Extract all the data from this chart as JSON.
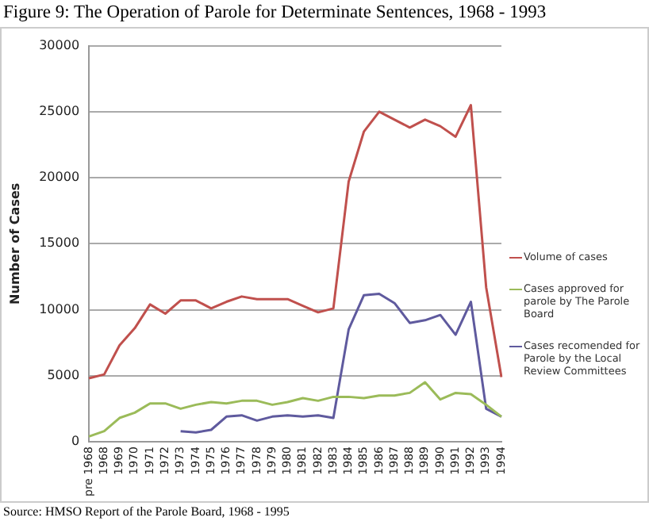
{
  "chart_data": {
    "type": "line",
    "title": "Figure 9: The Operation of Parole for Determinate Sentences, 1968 - 1993",
    "ylabel": "Number of Cases",
    "categories": [
      "pre 1968",
      "1968",
      "1969",
      "1970",
      "1971",
      "1972",
      "1973",
      "1974",
      "1975",
      "1976",
      "1977",
      "1978",
      "1979",
      "1980",
      "1981",
      "1982",
      "1983",
      "1984",
      "1985",
      "1986",
      "1987",
      "1988",
      "1989",
      "1990",
      "1991",
      "1992",
      "1993",
      "1994"
    ],
    "series": [
      {
        "name": "Volume of cases",
        "color": "#c0504d",
        "values": [
          4800,
          5100,
          7300,
          8600,
          10400,
          9700,
          10700,
          10700,
          10100,
          10600,
          11000,
          10800,
          10800,
          10800,
          10300,
          9800,
          10100,
          19700,
          23500,
          25000,
          24400,
          23800,
          24400,
          23900,
          23100,
          25500,
          11700,
          4900
        ]
      },
      {
        "name": "Cases approved for parole by The Parole Board",
        "color": "#9bbb59",
        "values": [
          400,
          800,
          1800,
          2200,
          2900,
          2900,
          2500,
          2800,
          3000,
          2900,
          3100,
          3100,
          2800,
          3000,
          3300,
          3100,
          3400,
          3400,
          3300,
          3500,
          3500,
          3700,
          4500,
          3200,
          3700,
          3600,
          2800,
          1900
        ]
      },
      {
        "name": "Cases recomended for Parole by the Local Review Committees",
        "color": "#5f5a9e",
        "values": [
          null,
          null,
          null,
          null,
          null,
          null,
          800,
          700,
          900,
          1900,
          2000,
          1600,
          1900,
          2000,
          1900,
          2000,
          1800,
          8500,
          11100,
          11200,
          10500,
          9000,
          9200,
          9600,
          8100,
          10600,
          2500,
          1900
        ]
      }
    ],
    "ylim": [
      0,
      30000
    ],
    "yticks": [
      0,
      5000,
      10000,
      15000,
      20000,
      25000,
      30000
    ],
    "grid": "y",
    "legend": "right",
    "marker": "none",
    "line_style": "solid",
    "annotations": [
      "Source: HMSO Report of the Parole Board, 1968 - 1995"
    ]
  }
}
